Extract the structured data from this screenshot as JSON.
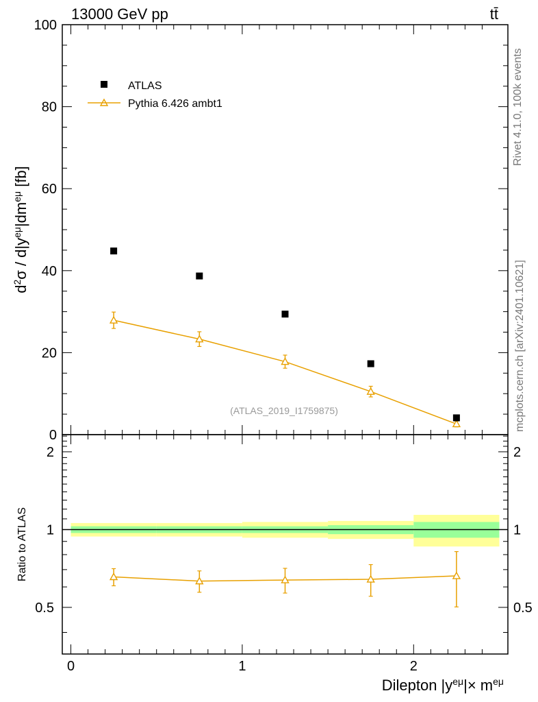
{
  "header": {
    "energy_label": "13000 GeV pp",
    "process_label": "tt̄"
  },
  "side_labels": {
    "rivet": "Rivet 4.1.0,  100k events",
    "source": "mcplots.cern.ch [arXiv:2401.10621]"
  },
  "chart_data": [
    {
      "type": "scatter",
      "name": "main-panel",
      "ylabel": "d²σ / d|y^eμ|dm^eμ [fb]",
      "xlim": [
        -0.05,
        2.55
      ],
      "ylim": [
        0,
        100
      ],
      "yticks": [
        0,
        20,
        40,
        60,
        80,
        100
      ],
      "watermark": "(ATLAS_2019_I1759875)",
      "legend": [
        {
          "name": "ATLAS",
          "marker": "square",
          "color": "#000000"
        },
        {
          "name": "Pythia 6.426 ambt1",
          "marker": "triangle",
          "color": "#e8a000"
        }
      ],
      "series": [
        {
          "name": "ATLAS",
          "x": [
            0.25,
            0.75,
            1.25,
            1.75,
            2.25
          ],
          "values": [
            44.8,
            38.7,
            29.4,
            17.3,
            4.1
          ]
        },
        {
          "name": "Pythia 6.426 ambt1",
          "x": [
            0.25,
            0.75,
            1.25,
            1.75,
            2.25
          ],
          "values": [
            27.9,
            23.3,
            17.8,
            10.5,
            2.6
          ],
          "errors": [
            2.0,
            1.8,
            1.6,
            1.3,
            0.7
          ]
        }
      ]
    },
    {
      "type": "scatter",
      "name": "ratio-panel",
      "ylabel": "Ratio to ATLAS",
      "xlabel": "Dilepton |y^eμ|× m^eμ",
      "xlim": [
        -0.05,
        2.55
      ],
      "ylim": [
        0.33,
        2.33
      ],
      "xticks": [
        0,
        1,
        2
      ],
      "yticks": [
        0.5,
        1,
        2
      ],
      "ytick_labels": [
        "0.5",
        "1",
        "2"
      ],
      "bands": [
        {
          "x0": 0.0,
          "x1": 0.5,
          "stat": 0.03,
          "total": 0.06
        },
        {
          "x0": 0.5,
          "x1": 1.0,
          "stat": 0.03,
          "total": 0.06
        },
        {
          "x0": 1.0,
          "x1": 1.5,
          "stat": 0.03,
          "total": 0.07
        },
        {
          "x0": 1.5,
          "x1": 2.0,
          "stat": 0.04,
          "total": 0.08
        },
        {
          "x0": 2.0,
          "x1": 2.5,
          "stat": 0.07,
          "total": 0.14
        }
      ],
      "series": [
        {
          "name": "Pythia 6.426 ambt1",
          "x": [
            0.25,
            0.75,
            1.25,
            1.75,
            2.25
          ],
          "values": [
            0.656,
            0.632,
            0.638,
            0.642,
            0.662
          ],
          "errors": [
            0.05,
            0.06,
            0.07,
            0.09,
            0.16
          ]
        }
      ]
    }
  ]
}
